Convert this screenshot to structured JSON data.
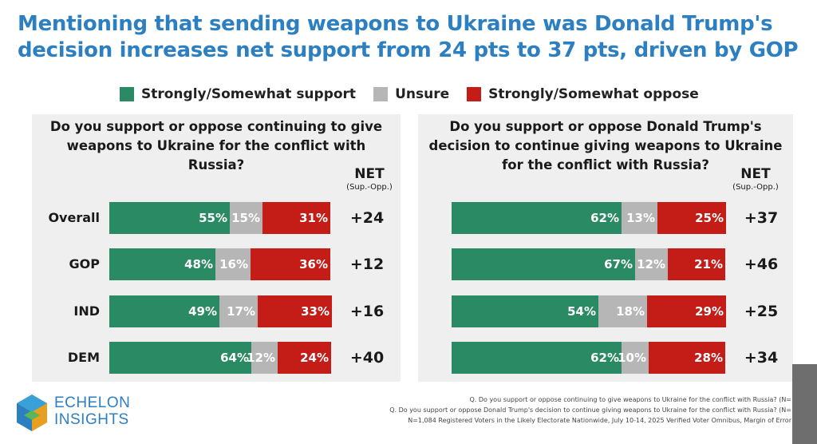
{
  "title_lines": [
    "Mentioning that sending weapons to Ukraine was Donald Trump's",
    "decision increases net support from 24 pts to 37 pts, driven by GOP"
  ],
  "legend": [
    {
      "label": "Strongly/Somewhat support",
      "color": "#2a8a63"
    },
    {
      "label": "Unsure",
      "color": "#b6b6b6"
    },
    {
      "label": "Strongly/Somewhat oppose",
      "color": "#c41d18"
    }
  ],
  "colors": {
    "title": "#2c7fc0",
    "panel_bg": "#efefef",
    "support": "#2a8a63",
    "unsure": "#b6b6b6",
    "oppose": "#c41d18"
  },
  "chart_data": [
    {
      "type": "bar",
      "stacked": true,
      "orientation": "horizontal",
      "question_lines": [
        "Do you support or oppose continuing to give",
        "weapons to Ukraine for the conflict with",
        "Russia?"
      ],
      "net_header": "NET",
      "net_subheader": "(Sup.-Opp.)",
      "categories": [
        "Overall",
        "GOP",
        "IND",
        "DEM"
      ],
      "series": [
        {
          "name": "Strongly/Somewhat support",
          "values": [
            55,
            48,
            49,
            64
          ]
        },
        {
          "name": "Unsure",
          "values": [
            15,
            16,
            17,
            12
          ]
        },
        {
          "name": "Strongly/Somewhat oppose",
          "values": [
            31,
            36,
            33,
            24
          ]
        }
      ],
      "net": [
        "+24",
        "+12",
        "+16",
        "+40"
      ],
      "legend_position": "top"
    },
    {
      "type": "bar",
      "stacked": true,
      "orientation": "horizontal",
      "question_lines": [
        "Do you support or oppose Donald Trump's",
        "decision to continue giving weapons to Ukraine",
        "for the conflict with Russia?"
      ],
      "net_header": "NET",
      "net_subheader": "(Sup.-Opp.)",
      "categories": [
        "Overall",
        "GOP",
        "IND",
        "DEM"
      ],
      "series": [
        {
          "name": "Strongly/Somewhat support",
          "values": [
            62,
            67,
            54,
            62
          ]
        },
        {
          "name": "Unsure",
          "values": [
            13,
            12,
            18,
            10
          ]
        },
        {
          "name": "Strongly/Somewhat oppose",
          "values": [
            25,
            21,
            29,
            28
          ]
        }
      ],
      "net": [
        "+37",
        "+46",
        "+25",
        "+34"
      ],
      "legend_position": "top"
    }
  ],
  "logo": {
    "line1": "ECHELON",
    "line2": "INSIGHTS"
  },
  "footnotes": [
    "Q. Do you support or oppose continuing to give weapons to Ukraine for the conflict with Russia? (N=",
    "Q. Do you support or oppose Donald Trump's decision to continue giving weapons to Ukraine for the conflict with Russia? (N=",
    "N=1,084 Registered Voters in the Likely Electorate Nationwide, July 10-14, 2025 Verified Voter Omnibus, Margin of Error"
  ]
}
